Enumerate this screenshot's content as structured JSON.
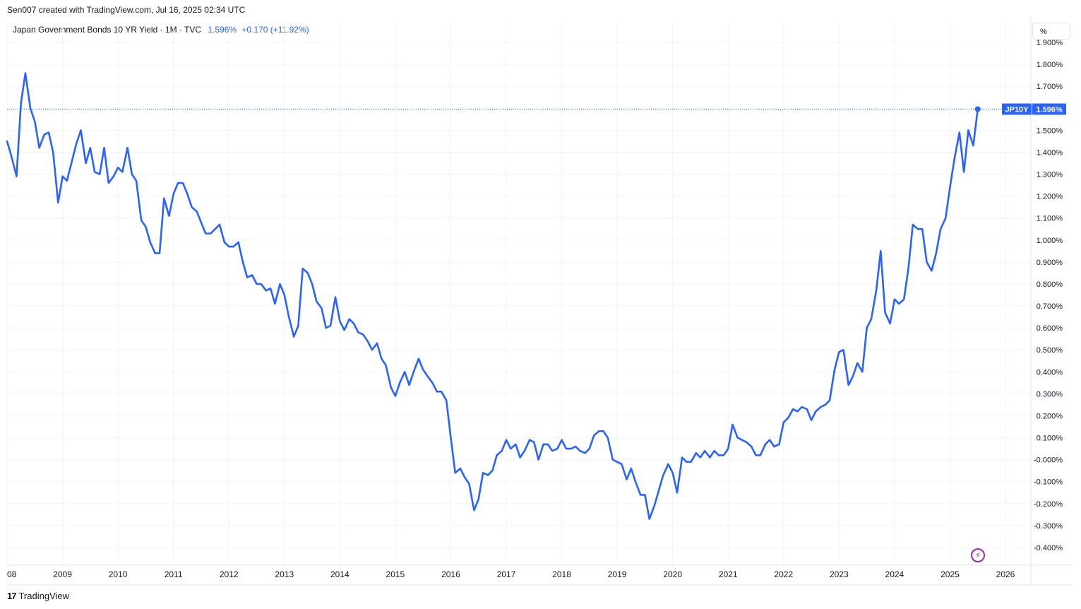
{
  "header": {
    "credit": "Sen007 created with TradingView.com, Jul 16, 2025 02:34 UTC"
  },
  "legend": {
    "symbol_line": "Japan Government Bonds 10 YR Yield · 1M · TVC",
    "last_value": "1.596%",
    "change": "+0.170 (+11.92%)"
  },
  "unit_button": "%",
  "price_tag": {
    "symbol": "JP10Y",
    "value": "1.596%"
  },
  "footer": {
    "brand": "TradingView",
    "logo": "17"
  },
  "colors": {
    "line": "#2962ff",
    "grid": "#f0f3fa",
    "text": "#131722",
    "flash": "#9c27b0"
  },
  "chart_data": {
    "type": "line",
    "title": "Japan Government Bonds 10 YR Yield",
    "interval": "1M",
    "source": "TVC",
    "ylabel": "%",
    "ylim": [
      -0.44,
      1.97
    ],
    "y_ticks": [
      -0.4,
      -0.3,
      -0.2,
      -0.1,
      0.0,
      0.1,
      0.2,
      0.3,
      0.4,
      0.5,
      0.6,
      0.7,
      0.8,
      0.9,
      1.0,
      1.1,
      1.2,
      1.3,
      1.4,
      1.5,
      1.6,
      1.7,
      1.8,
      1.9
    ],
    "y_tick_labels": [
      "-0.400%",
      "-0.300%",
      "-0.200%",
      "-0.100%",
      "-0.000%",
      "0.100%",
      "0.200%",
      "0.300%",
      "0.400%",
      "0.500%",
      "0.600%",
      "0.700%",
      "0.800%",
      "0.900%",
      "1.000%",
      "1.100%",
      "1.200%",
      "1.300%",
      "1.400%",
      "1.500%",
      "1.600%",
      "1.700%",
      "1.800%",
      "1.900%"
    ],
    "x_tick_labels": [
      "08",
      "2009",
      "2010",
      "2011",
      "2012",
      "2013",
      "2014",
      "2015",
      "2016",
      "2017",
      "2018",
      "2019",
      "2020",
      "2021",
      "2022",
      "2023",
      "2024",
      "2025",
      "2026"
    ],
    "x_tick_years": [
      2008,
      2009,
      2010,
      2011,
      2012,
      2013,
      2014,
      2015,
      2016,
      2017,
      2018,
      2019,
      2020,
      2021,
      2022,
      2023,
      2024,
      2025,
      2026
    ],
    "x_range": [
      2008.0,
      2026.1
    ],
    "grid": true,
    "last_value": 1.596,
    "series": [
      {
        "points": [
          [
            2008.0,
            1.45
          ],
          [
            2008.08,
            1.38
          ],
          [
            2008.17,
            1.29
          ],
          [
            2008.25,
            1.62
          ],
          [
            2008.33,
            1.76
          ],
          [
            2008.42,
            1.6
          ],
          [
            2008.5,
            1.54
          ],
          [
            2008.58,
            1.42
          ],
          [
            2008.67,
            1.48
          ],
          [
            2008.75,
            1.49
          ],
          [
            2008.83,
            1.4
          ],
          [
            2008.92,
            1.17
          ],
          [
            2009.0,
            1.29
          ],
          [
            2009.08,
            1.27
          ],
          [
            2009.17,
            1.36
          ],
          [
            2009.25,
            1.44
          ],
          [
            2009.33,
            1.5
          ],
          [
            2009.42,
            1.35
          ],
          [
            2009.5,
            1.42
          ],
          [
            2009.58,
            1.31
          ],
          [
            2009.67,
            1.3
          ],
          [
            2009.75,
            1.42
          ],
          [
            2009.83,
            1.26
          ],
          [
            2009.92,
            1.29
          ],
          [
            2010.0,
            1.33
          ],
          [
            2010.08,
            1.31
          ],
          [
            2010.17,
            1.42
          ],
          [
            2010.25,
            1.3
          ],
          [
            2010.33,
            1.27
          ],
          [
            2010.42,
            1.09
          ],
          [
            2010.5,
            1.06
          ],
          [
            2010.58,
            0.99
          ],
          [
            2010.67,
            0.94
          ],
          [
            2010.75,
            0.94
          ],
          [
            2010.83,
            1.19
          ],
          [
            2010.92,
            1.11
          ],
          [
            2011.0,
            1.21
          ],
          [
            2011.08,
            1.26
          ],
          [
            2011.17,
            1.26
          ],
          [
            2011.25,
            1.21
          ],
          [
            2011.33,
            1.15
          ],
          [
            2011.42,
            1.13
          ],
          [
            2011.5,
            1.08
          ],
          [
            2011.58,
            1.03
          ],
          [
            2011.67,
            1.03
          ],
          [
            2011.75,
            1.05
          ],
          [
            2011.83,
            1.07
          ],
          [
            2011.92,
            0.99
          ],
          [
            2012.0,
            0.97
          ],
          [
            2012.08,
            0.97
          ],
          [
            2012.17,
            0.99
          ],
          [
            2012.25,
            0.9
          ],
          [
            2012.33,
            0.83
          ],
          [
            2012.42,
            0.84
          ],
          [
            2012.5,
            0.8
          ],
          [
            2012.58,
            0.8
          ],
          [
            2012.67,
            0.77
          ],
          [
            2012.75,
            0.78
          ],
          [
            2012.83,
            0.71
          ],
          [
            2012.92,
            0.8
          ],
          [
            2013.0,
            0.75
          ],
          [
            2013.08,
            0.65
          ],
          [
            2013.17,
            0.56
          ],
          [
            2013.25,
            0.61
          ],
          [
            2013.33,
            0.87
          ],
          [
            2013.42,
            0.85
          ],
          [
            2013.5,
            0.8
          ],
          [
            2013.58,
            0.72
          ],
          [
            2013.67,
            0.69
          ],
          [
            2013.75,
            0.6
          ],
          [
            2013.83,
            0.61
          ],
          [
            2013.92,
            0.74
          ],
          [
            2014.0,
            0.63
          ],
          [
            2014.08,
            0.59
          ],
          [
            2014.17,
            0.64
          ],
          [
            2014.25,
            0.62
          ],
          [
            2014.33,
            0.58
          ],
          [
            2014.42,
            0.57
          ],
          [
            2014.5,
            0.54
          ],
          [
            2014.58,
            0.5
          ],
          [
            2014.67,
            0.53
          ],
          [
            2014.75,
            0.46
          ],
          [
            2014.83,
            0.43
          ],
          [
            2014.92,
            0.33
          ],
          [
            2015.0,
            0.29
          ],
          [
            2015.08,
            0.35
          ],
          [
            2015.17,
            0.4
          ],
          [
            2015.25,
            0.34
          ],
          [
            2015.33,
            0.4
          ],
          [
            2015.42,
            0.46
          ],
          [
            2015.5,
            0.41
          ],
          [
            2015.58,
            0.38
          ],
          [
            2015.67,
            0.35
          ],
          [
            2015.75,
            0.31
          ],
          [
            2015.83,
            0.31
          ],
          [
            2015.92,
            0.27
          ],
          [
            2016.0,
            0.1
          ],
          [
            2016.08,
            -0.06
          ],
          [
            2016.17,
            -0.04
          ],
          [
            2016.25,
            -0.08
          ],
          [
            2016.33,
            -0.11
          ],
          [
            2016.42,
            -0.23
          ],
          [
            2016.5,
            -0.18
          ],
          [
            2016.58,
            -0.06
          ],
          [
            2016.67,
            -0.07
          ],
          [
            2016.75,
            -0.05
          ],
          [
            2016.83,
            0.02
          ],
          [
            2016.92,
            0.04
          ],
          [
            2017.0,
            0.09
          ],
          [
            2017.08,
            0.05
          ],
          [
            2017.17,
            0.07
          ],
          [
            2017.25,
            0.01
          ],
          [
            2017.33,
            0.04
          ],
          [
            2017.42,
            0.09
          ],
          [
            2017.5,
            0.08
          ],
          [
            2017.58,
            0.0
          ],
          [
            2017.67,
            0.07
          ],
          [
            2017.75,
            0.07
          ],
          [
            2017.83,
            0.04
          ],
          [
            2017.92,
            0.05
          ],
          [
            2018.0,
            0.09
          ],
          [
            2018.08,
            0.05
          ],
          [
            2018.17,
            0.05
          ],
          [
            2018.25,
            0.06
          ],
          [
            2018.33,
            0.04
          ],
          [
            2018.42,
            0.03
          ],
          [
            2018.5,
            0.05
          ],
          [
            2018.58,
            0.11
          ],
          [
            2018.67,
            0.13
          ],
          [
            2018.75,
            0.13
          ],
          [
            2018.83,
            0.1
          ],
          [
            2018.92,
            0.0
          ],
          [
            2019.0,
            -0.01
          ],
          [
            2019.08,
            -0.02
          ],
          [
            2019.17,
            -0.09
          ],
          [
            2019.25,
            -0.04
          ],
          [
            2019.33,
            -0.1
          ],
          [
            2019.42,
            -0.16
          ],
          [
            2019.5,
            -0.16
          ],
          [
            2019.58,
            -0.27
          ],
          [
            2019.67,
            -0.21
          ],
          [
            2019.75,
            -0.14
          ],
          [
            2019.83,
            -0.07
          ],
          [
            2019.92,
            -0.02
          ],
          [
            2020.0,
            -0.06
          ],
          [
            2020.08,
            -0.15
          ],
          [
            2020.17,
            0.01
          ],
          [
            2020.25,
            -0.01
          ],
          [
            2020.33,
            -0.01
          ],
          [
            2020.42,
            0.03
          ],
          [
            2020.5,
            0.01
          ],
          [
            2020.58,
            0.04
          ],
          [
            2020.67,
            0.01
          ],
          [
            2020.75,
            0.04
          ],
          [
            2020.83,
            0.02
          ],
          [
            2020.92,
            0.02
          ],
          [
            2021.0,
            0.05
          ],
          [
            2021.08,
            0.16
          ],
          [
            2021.17,
            0.1
          ],
          [
            2021.25,
            0.09
          ],
          [
            2021.33,
            0.08
          ],
          [
            2021.42,
            0.06
          ],
          [
            2021.5,
            0.02
          ],
          [
            2021.58,
            0.02
          ],
          [
            2021.67,
            0.07
          ],
          [
            2021.75,
            0.09
          ],
          [
            2021.83,
            0.06
          ],
          [
            2021.92,
            0.07
          ],
          [
            2022.0,
            0.17
          ],
          [
            2022.08,
            0.19
          ],
          [
            2022.17,
            0.23
          ],
          [
            2022.25,
            0.22
          ],
          [
            2022.33,
            0.24
          ],
          [
            2022.42,
            0.23
          ],
          [
            2022.5,
            0.18
          ],
          [
            2022.58,
            0.22
          ],
          [
            2022.67,
            0.24
          ],
          [
            2022.75,
            0.25
          ],
          [
            2022.83,
            0.27
          ],
          [
            2022.92,
            0.41
          ],
          [
            2023.0,
            0.49
          ],
          [
            2023.08,
            0.5
          ],
          [
            2023.17,
            0.34
          ],
          [
            2023.25,
            0.38
          ],
          [
            2023.33,
            0.44
          ],
          [
            2023.42,
            0.4
          ],
          [
            2023.5,
            0.6
          ],
          [
            2023.58,
            0.64
          ],
          [
            2023.67,
            0.77
          ],
          [
            2023.75,
            0.95
          ],
          [
            2023.83,
            0.67
          ],
          [
            2023.92,
            0.62
          ],
          [
            2024.0,
            0.73
          ],
          [
            2024.08,
            0.71
          ],
          [
            2024.17,
            0.73
          ],
          [
            2024.25,
            0.87
          ],
          [
            2024.33,
            1.07
          ],
          [
            2024.42,
            1.05
          ],
          [
            2024.5,
            1.05
          ],
          [
            2024.58,
            0.9
          ],
          [
            2024.67,
            0.86
          ],
          [
            2024.75,
            0.94
          ],
          [
            2024.83,
            1.05
          ],
          [
            2024.92,
            1.1
          ],
          [
            2025.0,
            1.24
          ],
          [
            2025.08,
            1.37
          ],
          [
            2025.17,
            1.49
          ],
          [
            2025.25,
            1.31
          ],
          [
            2025.33,
            1.5
          ],
          [
            2025.42,
            1.43
          ],
          [
            2025.5,
            1.596
          ]
        ]
      }
    ]
  }
}
